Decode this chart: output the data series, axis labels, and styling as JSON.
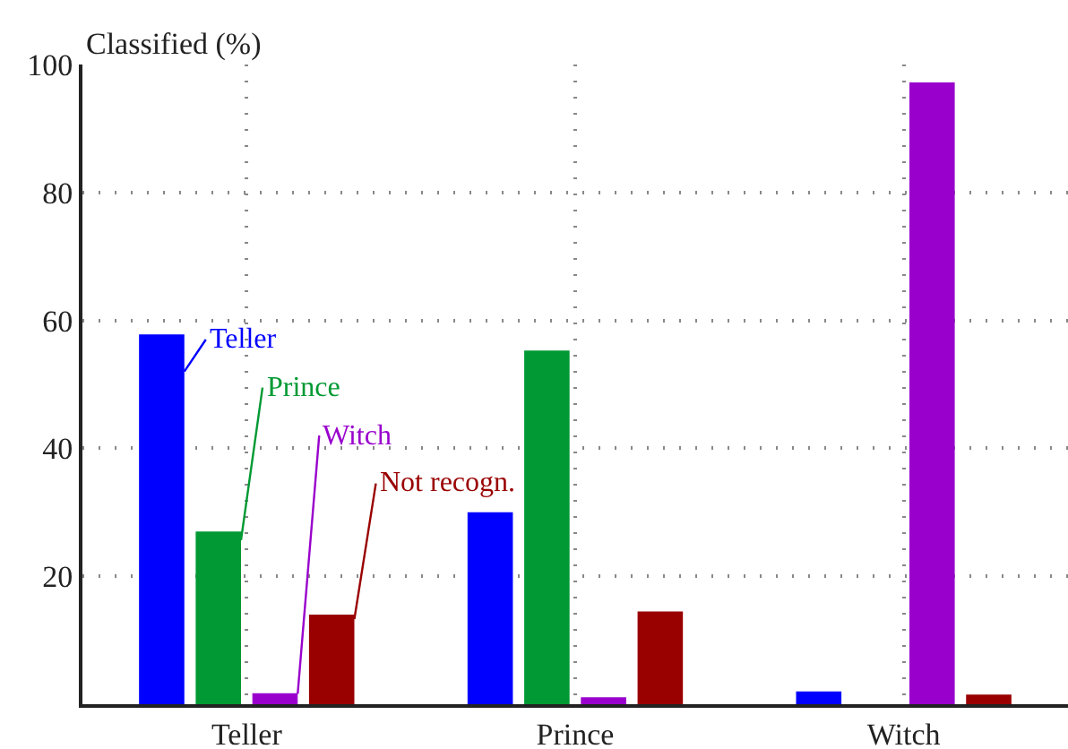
{
  "chart_data": {
    "type": "bar",
    "ylabel": "Classified (%)",
    "categories": [
      "Teller",
      "Prince",
      "Witch"
    ],
    "series": [
      {
        "name": "Teller",
        "color": "#0000ff",
        "values": [
          57.8,
          30,
          2
        ]
      },
      {
        "name": "Prince",
        "color": "#009933",
        "values": [
          27,
          55.3,
          0
        ]
      },
      {
        "name": "Witch",
        "color": "#9900cc",
        "values": [
          1.7,
          1.1,
          97.2
        ]
      },
      {
        "name": "Not recogn.",
        "color": "#990000",
        "values": [
          14,
          14.5,
          1.5
        ]
      }
    ],
    "ylim": [
      0,
      100
    ],
    "yticks": [
      20,
      40,
      60,
      80,
      100
    ],
    "grid": true
  }
}
